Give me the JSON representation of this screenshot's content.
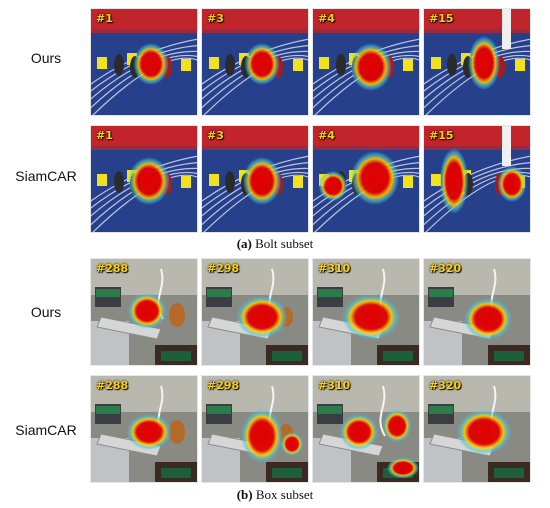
{
  "subsets": [
    {
      "caption_letter": "(a)",
      "caption_text": "Bolt subset",
      "scene": "track",
      "rows": [
        {
          "label": "Ours",
          "frames": [
            "#1",
            "#3",
            "#4",
            "#15"
          ]
        },
        {
          "label": "SiamCAR",
          "frames": [
            "#1",
            "#3",
            "#4",
            "#15"
          ]
        }
      ]
    },
    {
      "caption_letter": "(b)",
      "caption_text": "Box subset",
      "scene": "box",
      "rows": [
        {
          "label": "Ours",
          "frames": [
            "#288",
            "#298",
            "#310",
            "#320"
          ]
        },
        {
          "label": "SiamCAR",
          "frames": [
            "#288",
            "#298",
            "#310",
            "#320"
          ]
        }
      ]
    }
  ],
  "colors": {
    "track_blue": "#27408b",
    "banner_red": "#c2242b",
    "heat_red": "#e00000",
    "heat_yellow": "#ffd000",
    "heat_cyan": "#39c6e6",
    "box_bg": "#8a8a84"
  }
}
